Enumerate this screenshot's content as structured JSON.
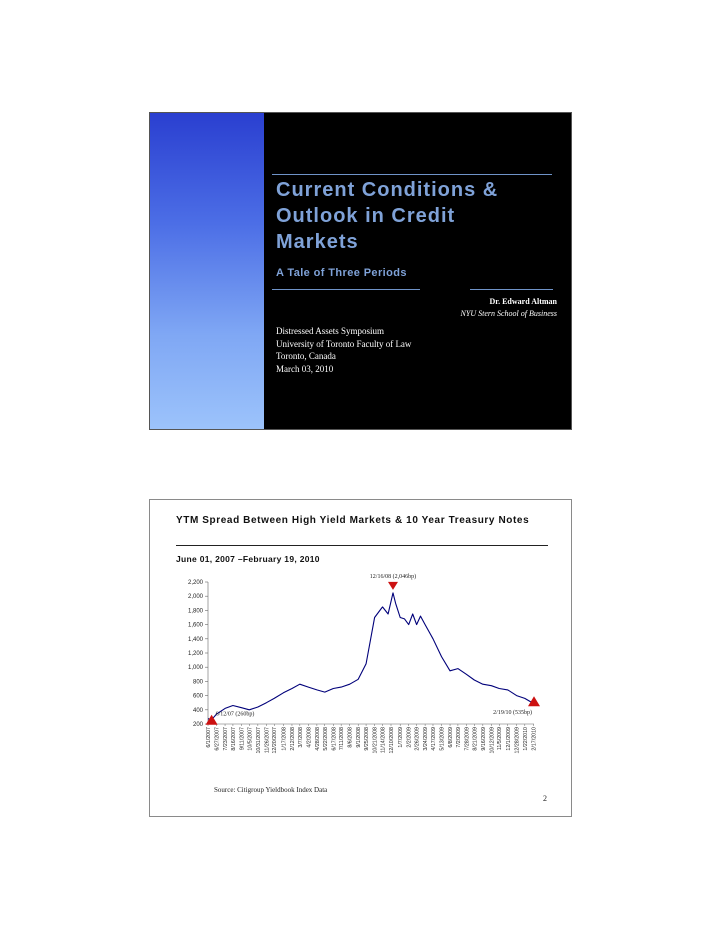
{
  "slide1": {
    "title_lines": [
      "Current Conditions &",
      "Outlook in Credit",
      "Markets"
    ],
    "subtitle": "A Tale of Three Periods",
    "author": "Dr. Edward Altman",
    "affiliation": "NYU Stern School of Business",
    "event_lines": [
      "Distressed Assets Symposium",
      "University of Toronto Faculty of Law",
      "Toronto, Canada",
      "March 03, 2010"
    ]
  },
  "slide2": {
    "title": "YTM Spread Between High Yield Markets & 10 Year Treasury Notes",
    "subtitle": "June 01, 2007 –February 19, 2010",
    "source": "Source: Citigroup Yieldbook Index Data",
    "page_number": "2",
    "colors": {
      "line": "#00007a",
      "marker": "#cc1111"
    }
  },
  "chart_data": {
    "type": "line",
    "title": "",
    "xlabel": "",
    "ylabel": "",
    "ylim": [
      200,
      2200
    ],
    "yticks": [
      200,
      400,
      600,
      800,
      1000,
      1200,
      1400,
      1600,
      1800,
      2000,
      2200
    ],
    "ytick_labels": [
      "200",
      "400",
      "600",
      "800",
      "1,000",
      "1,200",
      "1,400",
      "1,600",
      "1,800",
      "2,000",
      "2,200"
    ],
    "xtick_labels": [
      "6/1/2007",
      "6/27/2007",
      "7/23/2007",
      "8/16/2007",
      "9/11/2007",
      "10/5/2007",
      "10/31/2007",
      "11/26/2007",
      "12/20/2007",
      "1/17/2008",
      "2/12/2008",
      "3/7/2008",
      "4/2/2008",
      "4/28/2008",
      "5/22/2008",
      "6/17/2008",
      "7/11/2008",
      "8/6/2008",
      "9/1/2008",
      "9/25/2008",
      "10/21/2008",
      "11/14/2008",
      "12/10/2008",
      "1/7/2009",
      "2/2/2009",
      "2/26/2009",
      "3/24/2009",
      "4/17/2009",
      "5/13/2009",
      "6/8/2009",
      "7/2/2009",
      "7/28/2009",
      "8/21/2009",
      "9/16/2009",
      "10/12/2009",
      "11/5/2009",
      "12/1/2009",
      "12/28/2009",
      "1/22/2010",
      "2/17/2010"
    ],
    "series": [
      {
        "x": [
          "6/1/2007",
          "6/12/2007",
          "6/27/2007",
          "7/23/2007",
          "8/16/2007",
          "9/11/2007",
          "10/5/2007",
          "10/31/2007",
          "11/26/2007",
          "12/20/2007",
          "1/17/2008",
          "2/12/2008",
          "3/7/2008",
          "4/2/2008",
          "4/28/2008",
          "5/22/2008",
          "6/17/2008",
          "7/11/2008",
          "8/6/2008",
          "9/1/2008",
          "9/25/2008",
          "10/21/2008",
          "11/14/2008",
          "12/1/2008",
          "12/16/2008",
          "12/24/2008",
          "1/7/2009",
          "1/20/2009",
          "2/2/2009",
          "2/14/2009",
          "2/26/2009",
          "3/10/2009",
          "3/24/2009",
          "4/17/2009",
          "5/13/2009",
          "6/8/2009",
          "7/2/2009",
          "7/28/2009",
          "8/21/2009",
          "9/16/2009",
          "10/12/2009",
          "11/5/2009",
          "12/1/2009",
          "12/28/2009",
          "1/22/2010",
          "2/10/2010",
          "2/19/2010"
        ],
        "values": [
          275,
          260,
          340,
          420,
          460,
          430,
          400,
          440,
          500,
          560,
          640,
          700,
          760,
          720,
          680,
          650,
          700,
          720,
          760,
          830,
          1050,
          1700,
          1850,
          1750,
          2046,
          1900,
          1700,
          1680,
          1600,
          1750,
          1600,
          1720,
          1600,
          1400,
          1150,
          950,
          980,
          900,
          820,
          760,
          740,
          700,
          680,
          600,
          560,
          510,
          535
        ]
      }
    ],
    "annotations": [
      {
        "label": "12/16/08 (2,046bp)",
        "x": "12/16/2008",
        "y": 2046
      },
      {
        "label": "6/12/07 (260bp)",
        "x": "6/12/2007",
        "y": 260
      },
      {
        "label": "2/19/10 (535bp)",
        "x": "2/19/2010",
        "y": 535
      }
    ],
    "grid": false,
    "legend": "none"
  }
}
